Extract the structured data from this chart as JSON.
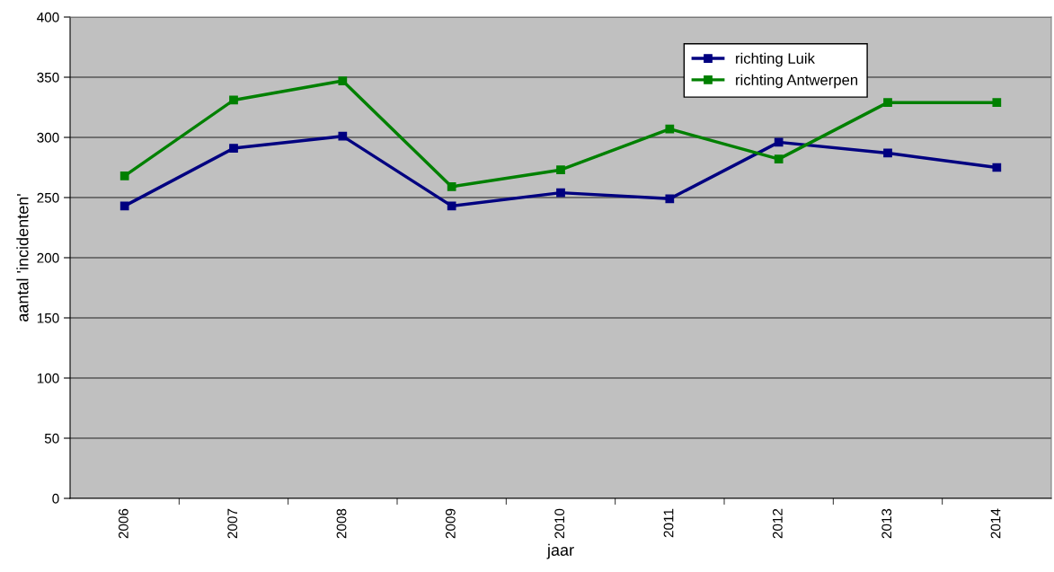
{
  "chart_data": {
    "type": "line",
    "xlabel": "jaar",
    "ylabel": "aantal 'incidenten'",
    "categories": [
      "2006",
      "2007",
      "2008",
      "2009",
      "2010",
      "2011",
      "2012",
      "2013",
      "2014"
    ],
    "series": [
      {
        "name": "richting Luik",
        "color": "#000080",
        "values": [
          243,
          291,
          301,
          243,
          254,
          249,
          296,
          287,
          275
        ]
      },
      {
        "name": "richting Antwerpen",
        "color": "#008000",
        "values": [
          268,
          331,
          347,
          259,
          273,
          307,
          282,
          329,
          329
        ]
      }
    ],
    "ylim": [
      0,
      400
    ],
    "yticks": [
      0,
      50,
      100,
      150,
      200,
      250,
      300,
      350,
      400
    ],
    "grid": "y",
    "legend": "top right",
    "marker": "square",
    "line_style": "solid"
  }
}
